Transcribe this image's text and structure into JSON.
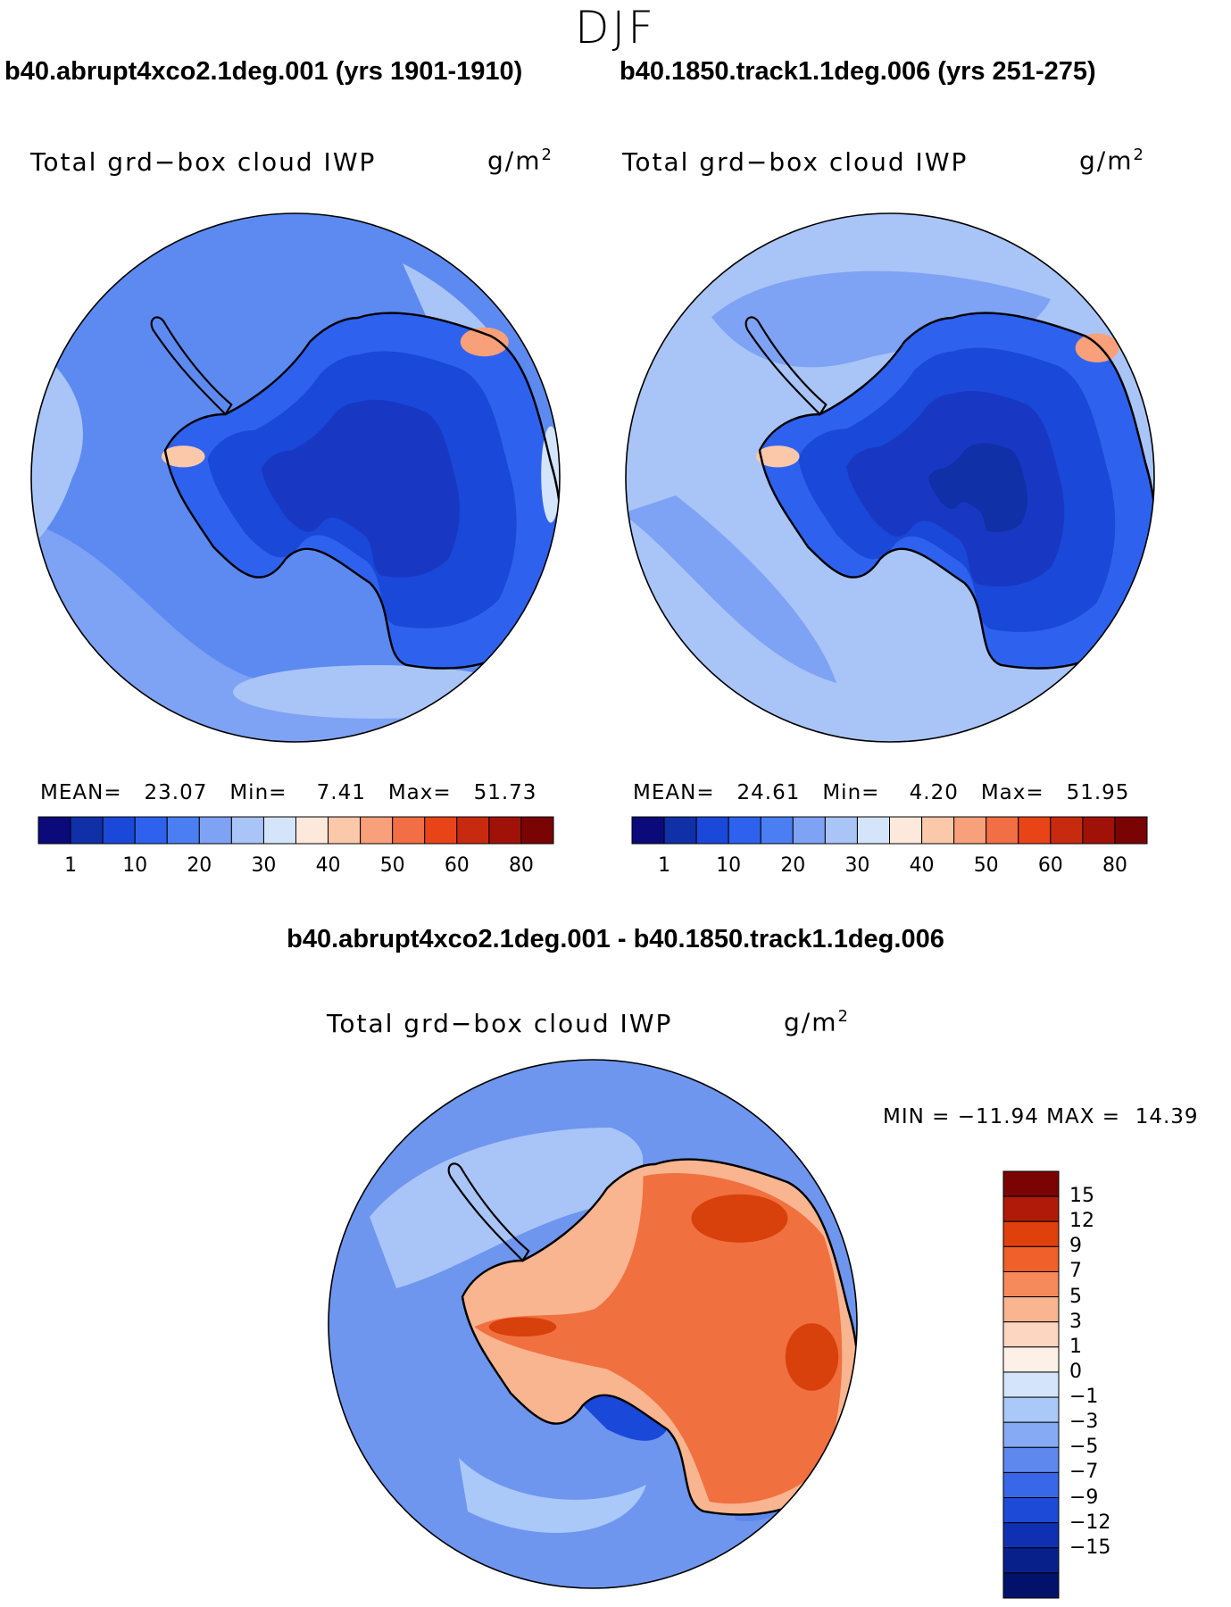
{
  "season": "DJF",
  "variable": "Total grd−box cloud IWP",
  "units_base": "g/m",
  "units_exp": "2",
  "panel_left": {
    "title": "b40.abrupt4xco2.1deg.001 (yrs 1901-1910)",
    "mean_label": "MEAN=",
    "mean_value": "23.07",
    "min_label": "Min=",
    "min_value": "7.41",
    "max_label": "Max=",
    "max_value": "51.73"
  },
  "panel_right": {
    "title": "b40.1850.track1.1deg.006 (yrs 251-275)",
    "mean_label": "MEAN=",
    "mean_value": "24.61",
    "min_label": "Min=",
    "min_value": "4.20",
    "max_label": "Max=",
    "max_value": "51.95"
  },
  "panel_diff": {
    "title": "b40.abrupt4xco2.1deg.001 - b40.1850.track1.1deg.006",
    "minmax_text": "MIN = −11.94 MAX =  14.39"
  },
  "colorbar_abs": {
    "colors": [
      "#0a0a7a",
      "#1030a8",
      "#1a48d8",
      "#2e62ee",
      "#4a7ef2",
      "#7ea2f4",
      "#a9c4f7",
      "#d4e4fb",
      "#fde8dc",
      "#fbc8aa",
      "#f8a07a",
      "#f26e45",
      "#e84418",
      "#c82a10",
      "#a01208",
      "#7a0404"
    ],
    "ticks": [
      "1",
      "10",
      "20",
      "30",
      "40",
      "50",
      "60",
      "80"
    ]
  },
  "colorbar_diff": {
    "colors": [
      "#7a0404",
      "#b01a08",
      "#e0400c",
      "#f0602a",
      "#f78a5a",
      "#f9b490",
      "#fcd6c0",
      "#fdf0e6",
      "#d4e4fb",
      "#aac8f8",
      "#86aaf3",
      "#5e88ee",
      "#3868e8",
      "#1e4ad8",
      "#1030b4",
      "#08208a",
      "#02126a"
    ],
    "ticks": [
      "15",
      "12",
      "9",
      "7",
      "5",
      "3",
      "1",
      "0",
      "−1",
      "−3",
      "−5",
      "−7",
      "−9",
      "−12",
      "−15"
    ]
  },
  "colors": {
    "ocean_abs_a": "#5d8af0",
    "ocean_abs_b": "#a9c4f7",
    "ocean_diff": "#6e96ef",
    "continent_abs": "#2550e0",
    "continent_abs_core": "#1838c4",
    "diff_warm": "#f07040",
    "diff_hot": "#d8400c"
  }
}
